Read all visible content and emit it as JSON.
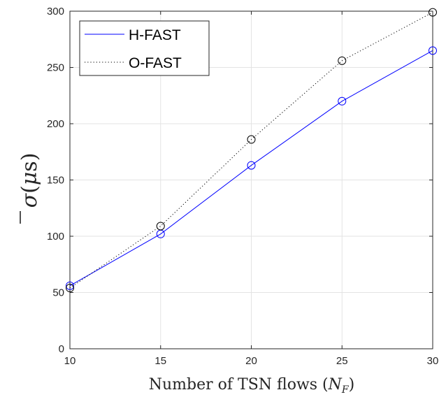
{
  "chart_data": {
    "type": "line",
    "title": "",
    "xlabel": "Number of TSN flows (N_F)",
    "ylabel": "σ̄(μs)",
    "x": [
      10,
      15,
      20,
      25,
      30
    ],
    "xlim": [
      10,
      30
    ],
    "ylim": [
      0,
      300
    ],
    "xticks": [
      "10",
      "15",
      "20",
      "25",
      "30"
    ],
    "yticks": [
      "0",
      "50",
      "100",
      "150",
      "200",
      "250",
      "300"
    ],
    "grid": true,
    "legend_position": "top-left",
    "series": [
      {
        "name": "H-FAST",
        "values": [
          56,
          102,
          163,
          220,
          265
        ],
        "color": "#0000ff",
        "line_style": "solid",
        "marker": "circle"
      },
      {
        "name": "O-FAST",
        "values": [
          54,
          109,
          186,
          256,
          299
        ],
        "color": "#000000",
        "line_style": "dotted",
        "marker": "circle"
      }
    ]
  }
}
